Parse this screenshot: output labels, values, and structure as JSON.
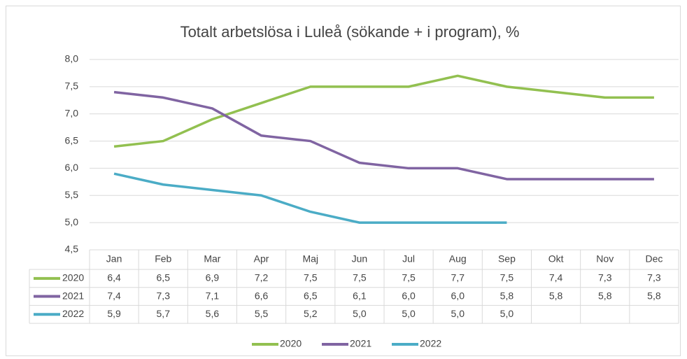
{
  "chart_data": {
    "type": "line",
    "title": "Totalt arbetslösa i Luleå (sökande + i program), %",
    "categories": [
      "Jan",
      "Feb",
      "Mar",
      "Apr",
      "Maj",
      "Jun",
      "Jul",
      "Aug",
      "Sep",
      "Okt",
      "Nov",
      "Dec"
    ],
    "series": [
      {
        "name": "2020",
        "color": "#92c050",
        "values": [
          6.4,
          6.5,
          6.9,
          7.2,
          7.5,
          7.5,
          7.5,
          7.7,
          7.5,
          7.4,
          7.3,
          7.3
        ],
        "value_labels": [
          "6,4",
          "6,5",
          "6,9",
          "7,2",
          "7,5",
          "7,5",
          "7,5",
          "7,7",
          "7,5",
          "7,4",
          "7,3",
          "7,3"
        ]
      },
      {
        "name": "2021",
        "color": "#8064a2",
        "values": [
          7.4,
          7.3,
          7.1,
          6.6,
          6.5,
          6.1,
          6.0,
          6.0,
          5.8,
          5.8,
          5.8,
          5.8
        ],
        "value_labels": [
          "7,4",
          "7,3",
          "7,1",
          "6,6",
          "6,5",
          "6,1",
          "6,0",
          "6,0",
          "5,8",
          "5,8",
          "5,8",
          "5,8"
        ]
      },
      {
        "name": "2022",
        "color": "#4bacc6",
        "values": [
          5.9,
          5.7,
          5.6,
          5.5,
          5.2,
          5.0,
          5.0,
          5.0,
          5.0,
          null,
          null,
          null
        ],
        "value_labels": [
          "5,9",
          "5,7",
          "5,6",
          "5,5",
          "5,2",
          "5,0",
          "5,0",
          "5,0",
          "5,0",
          null,
          null,
          null
        ]
      }
    ],
    "ylim": [
      4.5,
      8.0
    ],
    "yticks": [
      {
        "value": 4.5,
        "label": "4,5"
      },
      {
        "value": 5.0,
        "label": "5,0"
      },
      {
        "value": 5.5,
        "label": "5,5"
      },
      {
        "value": 6.0,
        "label": "6,0"
      },
      {
        "value": 6.5,
        "label": "6,5"
      },
      {
        "value": 7.0,
        "label": "7,0"
      },
      {
        "value": 7.5,
        "label": "7,5"
      },
      {
        "value": 8.0,
        "label": "8,0"
      }
    ],
    "grid": true,
    "legend": "bottom"
  }
}
